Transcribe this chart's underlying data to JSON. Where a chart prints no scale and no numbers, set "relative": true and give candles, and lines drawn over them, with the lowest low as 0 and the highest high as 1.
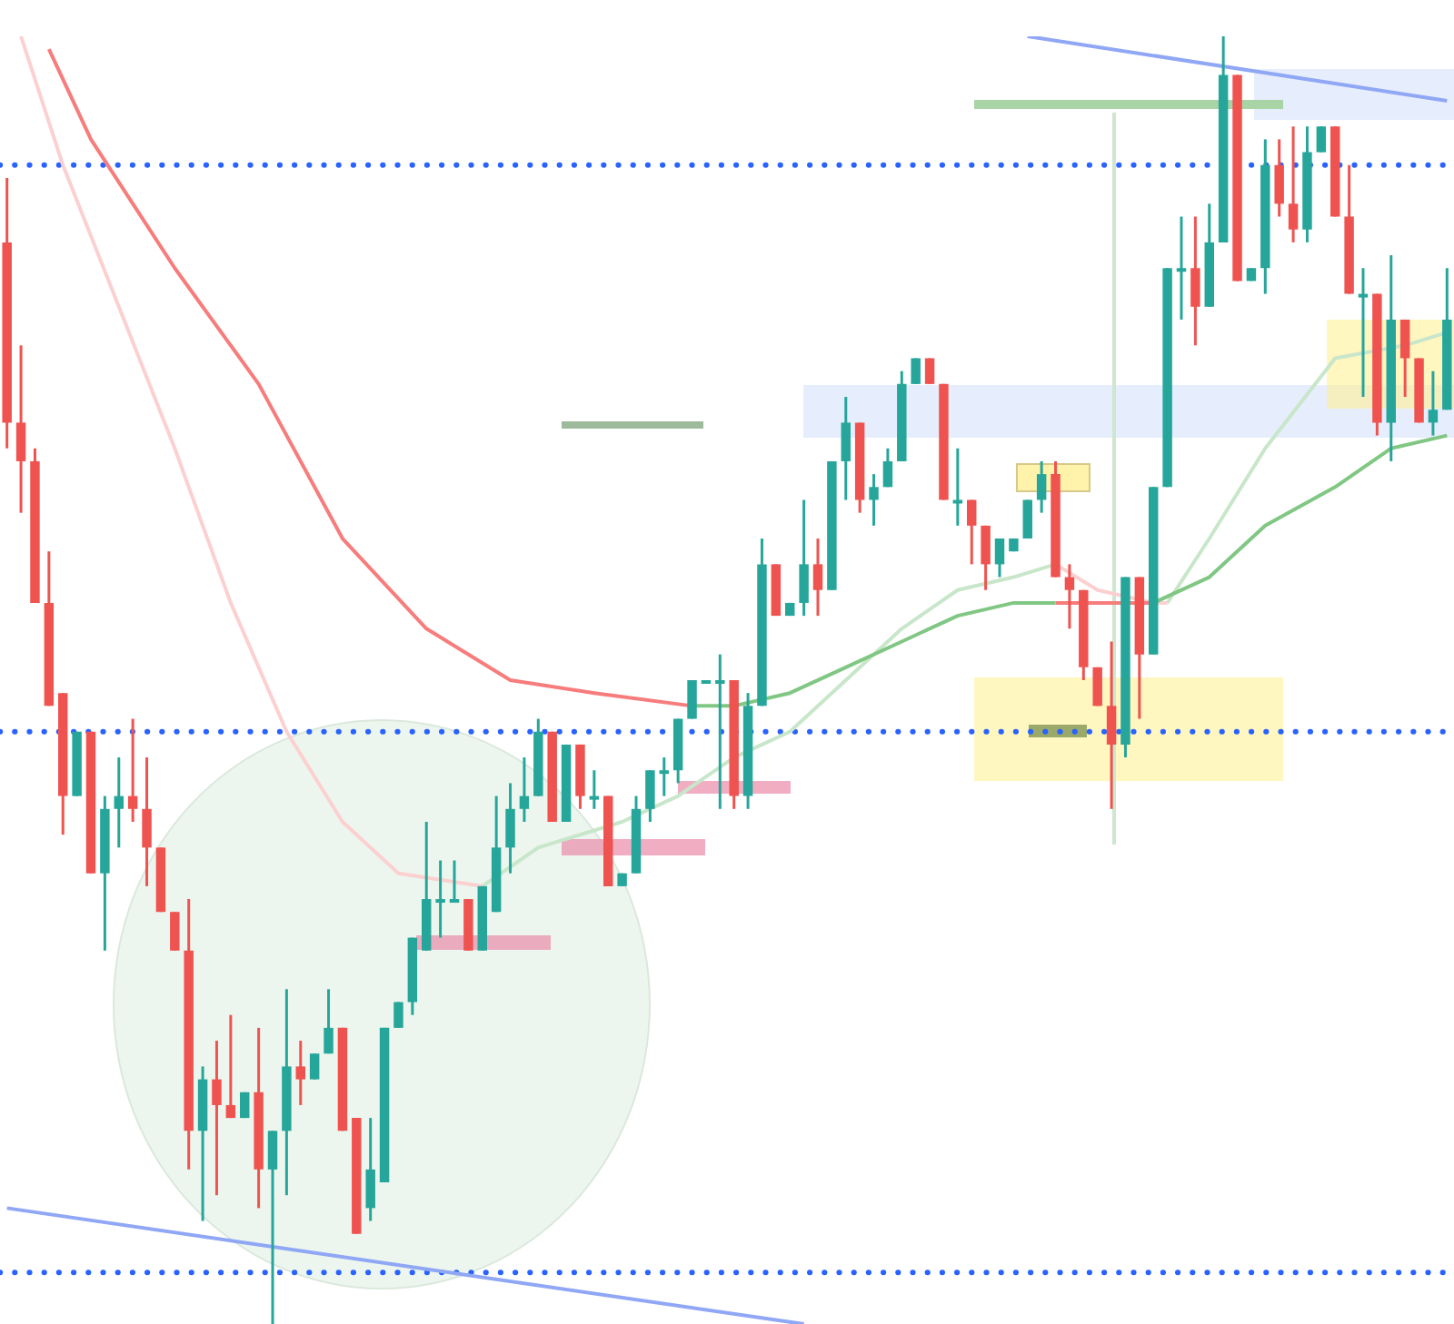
{
  "chart_data": {
    "type": "candlestick",
    "relative": true,
    "tick_labels": false,
    "categories": [
      null,
      null,
      null,
      null,
      null,
      null,
      null,
      null,
      null,
      null,
      null,
      null,
      null,
      null,
      null,
      null,
      null,
      null,
      null,
      null,
      null,
      null,
      null,
      null,
      null,
      null,
      null,
      null,
      null,
      null,
      null,
      null,
      null,
      null,
      null,
      null,
      null,
      null,
      null,
      null,
      null,
      null,
      null,
      null,
      null,
      null,
      null,
      null,
      null,
      null,
      null,
      null,
      null,
      null,
      null,
      null,
      null,
      null,
      null,
      null,
      null,
      null,
      null,
      null,
      null,
      null,
      null,
      null,
      null,
      null,
      null,
      null,
      null,
      null,
      null,
      null,
      null,
      null,
      null,
      null,
      null,
      null,
      null,
      null,
      null,
      null,
      null,
      null,
      null,
      null,
      null,
      null,
      null,
      null,
      null,
      null,
      null,
      null,
      null,
      null,
      null,
      null,
      null,
      null
    ],
    "ohlc": [
      [
        0.84,
        0.89,
        0.68,
        0.7
      ],
      [
        0.7,
        0.76,
        0.63,
        0.67
      ],
      [
        0.67,
        0.68,
        0.56,
        0.56
      ],
      [
        0.56,
        0.6,
        0.48,
        0.48
      ],
      [
        0.49,
        0.49,
        0.38,
        0.41
      ],
      [
        0.41,
        0.46,
        0.41,
        0.46
      ],
      [
        0.46,
        0.46,
        0.35,
        0.35
      ],
      [
        0.35,
        0.41,
        0.29,
        0.4
      ],
      [
        0.4,
        0.44,
        0.37,
        0.41
      ],
      [
        0.41,
        0.47,
        0.39,
        0.4
      ],
      [
        0.4,
        0.44,
        0.34,
        0.37
      ],
      [
        0.37,
        0.37,
        0.32,
        0.32
      ],
      [
        0.32,
        0.32,
        0.29,
        0.29
      ],
      [
        0.29,
        0.33,
        0.12,
        0.15
      ],
      [
        0.15,
        0.2,
        0.08,
        0.19
      ],
      [
        0.19,
        0.22,
        0.1,
        0.17
      ],
      [
        0.17,
        0.24,
        0.16,
        0.16
      ],
      [
        0.16,
        0.18,
        0.16,
        0.18
      ],
      [
        0.18,
        0.23,
        0.09,
        0.12
      ],
      [
        0.12,
        0.15,
        0,
        0.15
      ],
      [
        0.15,
        0.26,
        0.1,
        0.2
      ],
      [
        0.2,
        0.22,
        0.17,
        0.19
      ],
      [
        0.19,
        0.21,
        0.19,
        0.21
      ],
      [
        0.21,
        0.26,
        0.21,
        0.23
      ],
      [
        0.23,
        0.23,
        0.15,
        0.15
      ],
      [
        0.16,
        0.16,
        0.07,
        0.07
      ],
      [
        0.09,
        0.16,
        0.08,
        0.12
      ],
      [
        0.11,
        0.23,
        0.11,
        0.23
      ],
      [
        0.23,
        0.25,
        0.23,
        0.25
      ],
      [
        0.25,
        0.3,
        0.24,
        0.3
      ],
      [
        0.29,
        0.39,
        0.29,
        0.33
      ],
      [
        0.33,
        0.36,
        0.3,
        0.33
      ],
      [
        0.33,
        0.36,
        0.33,
        0.33
      ],
      [
        0.33,
        0.33,
        0.29,
        0.29
      ],
      [
        0.29,
        0.34,
        0.29,
        0.34
      ],
      [
        0.32,
        0.41,
        0.32,
        0.37
      ],
      [
        0.37,
        0.42,
        0.35,
        0.4
      ],
      [
        0.4,
        0.44,
        0.39,
        0.41
      ],
      [
        0.41,
        0.47,
        0.41,
        0.46
      ],
      [
        0.46,
        0.46,
        0.39,
        0.39
      ],
      [
        0.39,
        0.45,
        0.39,
        0.45
      ],
      [
        0.45,
        0.45,
        0.4,
        0.41
      ],
      [
        0.41,
        0.43,
        0.4,
        0.41
      ],
      [
        0.41,
        0.41,
        0.34,
        0.34
      ],
      [
        0.34,
        0.35,
        0.34,
        0.35
      ],
      [
        0.35,
        0.41,
        0.35,
        0.4
      ],
      [
        0.4,
        0.43,
        0.39,
        0.43
      ],
      [
        0.43,
        0.44,
        0.41,
        0.43
      ],
      [
        0.43,
        0.47,
        0.42,
        0.47
      ],
      [
        0.47,
        0.5,
        0.47,
        0.5
      ],
      [
        0.5,
        0.5,
        0.5,
        0.5
      ],
      [
        0.5,
        0.52,
        0.4,
        0.5
      ],
      [
        0.5,
        0.5,
        0.4,
        0.41
      ],
      [
        0.41,
        0.49,
        0.4,
        0.48
      ],
      [
        0.48,
        0.61,
        0.48,
        0.59
      ],
      [
        0.59,
        0.59,
        0.55,
        0.55
      ],
      [
        0.55,
        0.56,
        0.55,
        0.56
      ],
      [
        0.56,
        0.64,
        0.55,
        0.59
      ],
      [
        0.59,
        0.61,
        0.55,
        0.57
      ],
      [
        0.57,
        0.67,
        0.57,
        0.67
      ],
      [
        0.67,
        0.72,
        0.64,
        0.7
      ],
      [
        0.7,
        0.7,
        0.63,
        0.64
      ],
      [
        0.64,
        0.66,
        0.62,
        0.65
      ],
      [
        0.65,
        0.68,
        0.65,
        0.67
      ],
      [
        0.67,
        0.74,
        0.67,
        0.73
      ],
      [
        0.73,
        0.75,
        0.73,
        0.75
      ],
      [
        0.75,
        0.75,
        0.73,
        0.73
      ],
      [
        0.73,
        0.73,
        0.64,
        0.64
      ],
      [
        0.64,
        0.68,
        0.62,
        0.64
      ],
      [
        0.64,
        0.64,
        0.59,
        0.62
      ],
      [
        0.62,
        0.62,
        0.57,
        0.59
      ],
      [
        0.59,
        0.61,
        0.58,
        0.61
      ],
      [
        0.6,
        0.61,
        0.6,
        0.61
      ],
      [
        0.61,
        0.64,
        0.61,
        0.64
      ],
      [
        0.64,
        0.67,
        0.63,
        0.66
      ],
      [
        0.66,
        0.67,
        0.58,
        0.58
      ],
      [
        0.58,
        0.59,
        0.54,
        0.57
      ],
      [
        0.57,
        0.57,
        0.5,
        0.51
      ],
      [
        0.51,
        0.51,
        0.48,
        0.48
      ],
      [
        0.48,
        0.53,
        0.4,
        0.45
      ],
      [
        0.45,
        0.58,
        0.44,
        0.58
      ],
      [
        0.58,
        0.58,
        0.47,
        0.52
      ],
      [
        0.52,
        0.65,
        0.52,
        0.65
      ],
      [
        0.65,
        0.82,
        0.65,
        0.82
      ],
      [
        0.82,
        0.86,
        0.78,
        0.82
      ],
      [
        0.82,
        0.86,
        0.76,
        0.79
      ],
      [
        0.79,
        0.87,
        0.79,
        0.84
      ],
      [
        0.84,
        1.0,
        0.84,
        0.97
      ],
      [
        0.97,
        0.97,
        0.81,
        0.81
      ],
      [
        0.81,
        0.82,
        0.81,
        0.82
      ],
      [
        0.82,
        0.92,
        0.8,
        0.9
      ],
      [
        0.9,
        0.92,
        0.86,
        0.87
      ],
      [
        0.87,
        0.93,
        0.84,
        0.85
      ],
      [
        0.85,
        0.93,
        0.84,
        0.91
      ],
      [
        0.91,
        0.93,
        0.91,
        0.93
      ],
      [
        0.93,
        0.93,
        0.86,
        0.86
      ],
      [
        0.86,
        0.9,
        0.8,
        0.8
      ],
      [
        0.8,
        0.82,
        0.72,
        0.8
      ],
      [
        0.8,
        0.8,
        0.69,
        0.7
      ],
      [
        0.7,
        0.83,
        0.67,
        0.78
      ],
      [
        0.78,
        0.78,
        0.72,
        0.75
      ],
      [
        0.75,
        0.75,
        0.7,
        0.7
      ],
      [
        0.7,
        0.74,
        0.69,
        0.71
      ],
      [
        0.71,
        0.82,
        0.71,
        0.78
      ]
    ],
    "series": [
      {
        "type": "line",
        "color": "#f77c7c",
        "values": [
          null,
          null,
          null,
          0.99,
          null,
          null,
          0.92,
          null,
          null,
          null,
          null,
          null,
          0.82,
          null,
          null,
          null,
          null,
          null,
          0.73,
          null,
          null,
          null,
          null,
          null,
          0.61,
          null,
          null,
          null,
          null,
          null,
          0.54,
          null,
          null,
          null,
          null,
          null,
          0.5,
          null,
          null,
          null,
          null,
          null,
          0.49,
          null,
          null,
          null,
          null,
          null,
          null,
          0.48,
          null,
          null,
          null,
          null,
          null,
          null,
          null,
          null,
          null,
          null,
          null,
          null,
          null,
          null,
          null,
          null,
          null,
          null,
          null,
          null,
          null,
          null,
          null,
          null,
          null,
          null,
          null,
          null,
          null,
          null,
          null,
          null,
          null,
          null,
          null,
          null,
          null,
          null,
          null,
          null,
          null,
          null,
          null,
          null,
          null,
          null,
          null,
          null,
          null,
          null,
          null,
          null,
          null,
          null
        ]
      },
      {
        "type": "line",
        "color": "#81c784",
        "values": [
          null,
          null,
          null,
          null,
          null,
          null,
          null,
          null,
          null,
          null,
          null,
          null,
          null,
          null,
          null,
          null,
          null,
          null,
          null,
          null,
          null,
          null,
          null,
          null,
          null,
          null,
          null,
          null,
          null,
          null,
          null,
          null,
          null,
          null,
          null,
          null,
          null,
          null,
          null,
          null,
          null,
          null,
          null,
          null,
          null,
          null,
          null,
          null,
          null,
          0.48,
          null,
          null,
          0.48,
          null,
          null,
          null,
          0.49,
          null,
          null,
          null,
          0.51,
          null,
          null,
          null,
          0.53,
          null,
          null,
          null,
          0.55,
          null,
          null,
          null,
          0.56,
          null,
          null,
          0.56,
          null,
          null,
          null,
          null,
          null,
          null,
          null,
          null,
          null,
          null,
          null,
          null,
          null,
          null,
          null,
          null,
          null,
          null,
          null,
          null,
          null,
          null,
          null,
          null,
          null,
          null,
          null,
          null
        ]
      },
      {
        "type": "line",
        "color": "#f77c7c",
        "values": [
          null,
          null,
          null,
          null,
          null,
          null,
          null,
          null,
          null,
          null,
          null,
          null,
          null,
          null,
          null,
          null,
          null,
          null,
          null,
          null,
          null,
          null,
          null,
          null,
          null,
          null,
          null,
          null,
          null,
          null,
          null,
          null,
          null,
          null,
          null,
          null,
          null,
          null,
          null,
          null,
          null,
          null,
          null,
          null,
          null,
          null,
          null,
          null,
          null,
          null,
          null,
          null,
          null,
          null,
          null,
          null,
          null,
          null,
          null,
          null,
          null,
          null,
          null,
          null,
          null,
          null,
          null,
          null,
          null,
          null,
          null,
          null,
          null,
          null,
          null,
          0.56,
          null,
          null,
          0.56,
          null,
          null,
          null,
          0.56,
          null,
          null,
          null,
          null,
          null,
          null,
          null,
          null,
          null,
          null,
          null,
          null,
          null,
          null,
          null,
          null,
          null,
          null,
          null,
          null,
          null
        ]
      },
      {
        "type": "line",
        "color": "#81c784",
        "values": [
          null,
          null,
          null,
          null,
          null,
          null,
          null,
          null,
          null,
          null,
          null,
          null,
          null,
          null,
          null,
          null,
          null,
          null,
          null,
          null,
          null,
          null,
          null,
          null,
          null,
          null,
          null,
          null,
          null,
          null,
          null,
          null,
          null,
          null,
          null,
          null,
          null,
          null,
          null,
          null,
          null,
          null,
          null,
          null,
          null,
          null,
          null,
          null,
          null,
          null,
          null,
          null,
          null,
          null,
          null,
          null,
          null,
          null,
          null,
          null,
          null,
          null,
          null,
          null,
          null,
          null,
          null,
          null,
          null,
          null,
          null,
          null,
          null,
          null,
          null,
          null,
          null,
          null,
          null,
          null,
          null,
          null,
          0.56,
          null,
          null,
          null,
          0.58,
          null,
          null,
          null,
          0.62,
          null,
          null,
          null,
          null,
          0.65,
          null,
          null,
          null,
          0.68,
          null,
          null,
          null,
          0.69
        ]
      },
      {
        "type": "line",
        "color": "#fcd0d0",
        "values": [
          null,
          1.0,
          null,
          null,
          0.9,
          null,
          null,
          null,
          0.79,
          null,
          null,
          null,
          0.68,
          null,
          null,
          null,
          0.56,
          null,
          null,
          null,
          0.46,
          null,
          null,
          null,
          0.39,
          null,
          null,
          null,
          0.35,
          null,
          null,
          null,
          null,
          null,
          0.34,
          null,
          null,
          null,
          null,
          null,
          null,
          null,
          null,
          null,
          null,
          null,
          null,
          null,
          null,
          null,
          null,
          null,
          null,
          null,
          null,
          null,
          null,
          null,
          null,
          null,
          null,
          null,
          null,
          null,
          null,
          null,
          null,
          null,
          null,
          null,
          null,
          null,
          null,
          null,
          null,
          null,
          null,
          null,
          null,
          null,
          null,
          null,
          null,
          null,
          null,
          null,
          null,
          null,
          null,
          null,
          null,
          null,
          null,
          null,
          null,
          null,
          null,
          null,
          null,
          null,
          null,
          null,
          null,
          null
        ]
      },
      {
        "type": "line",
        "color": "#c8e6c9",
        "values": [
          null,
          null,
          null,
          null,
          null,
          null,
          null,
          null,
          null,
          null,
          null,
          null,
          null,
          null,
          null,
          null,
          null,
          null,
          null,
          null,
          null,
          null,
          null,
          null,
          null,
          null,
          null,
          null,
          null,
          null,
          null,
          null,
          null,
          null,
          0.34,
          null,
          null,
          null,
          0.37,
          null,
          null,
          null,
          null,
          null,
          0.39,
          null,
          null,
          null,
          0.41,
          null,
          null,
          null,
          0.44,
          null,
          null,
          null,
          0.46,
          null,
          null,
          null,
          0.5,
          null,
          null,
          null,
          0.54,
          null,
          null,
          null,
          0.57,
          null,
          null,
          null,
          0.58,
          null,
          null,
          0.59,
          null,
          null,
          null,
          null,
          null,
          null,
          null,
          null,
          null,
          null,
          null,
          null,
          null,
          null,
          null,
          null,
          null,
          null,
          null,
          null,
          null,
          null,
          null,
          null,
          null,
          null,
          null,
          null
        ]
      },
      {
        "type": "line",
        "color": "#fcd0d0",
        "values": [
          null,
          null,
          null,
          null,
          null,
          null,
          null,
          null,
          null,
          null,
          null,
          null,
          null,
          null,
          null,
          null,
          null,
          null,
          null,
          null,
          null,
          null,
          null,
          null,
          null,
          null,
          null,
          null,
          null,
          null,
          null,
          null,
          null,
          null,
          null,
          null,
          null,
          null,
          null,
          null,
          null,
          null,
          null,
          null,
          null,
          null,
          null,
          null,
          null,
          null,
          null,
          null,
          null,
          null,
          null,
          null,
          null,
          null,
          null,
          null,
          null,
          null,
          null,
          null,
          null,
          null,
          null,
          null,
          null,
          null,
          null,
          null,
          null,
          null,
          null,
          0.59,
          null,
          null,
          0.57,
          null,
          null,
          null,
          0.56,
          0.56,
          null,
          null,
          null,
          null,
          null,
          null,
          null,
          null,
          null,
          null,
          null,
          null,
          null,
          null,
          null,
          null,
          null,
          null,
          null,
          null
        ]
      },
      {
        "type": "line",
        "color": "#c8e6c9",
        "values": [
          null,
          null,
          null,
          null,
          null,
          null,
          null,
          null,
          null,
          null,
          null,
          null,
          null,
          null,
          null,
          null,
          null,
          null,
          null,
          null,
          null,
          null,
          null,
          null,
          null,
          null,
          null,
          null,
          null,
          null,
          null,
          null,
          null,
          null,
          null,
          null,
          null,
          null,
          null,
          null,
          null,
          null,
          null,
          null,
          null,
          null,
          null,
          null,
          null,
          null,
          null,
          null,
          null,
          null,
          null,
          null,
          null,
          null,
          null,
          null,
          null,
          null,
          null,
          null,
          null,
          null,
          null,
          null,
          null,
          null,
          null,
          null,
          null,
          null,
          null,
          null,
          null,
          null,
          null,
          null,
          null,
          null,
          null,
          0.56,
          null,
          null,
          0.61,
          null,
          null,
          null,
          0.68,
          null,
          null,
          null,
          null,
          0.75,
          null,
          null,
          null,
          null,
          0.76,
          null,
          null,
          0.77
        ]
      },
      {
        "type": "line",
        "color": "#8fa7f5",
        "values": [
          null,
          null,
          null,
          null,
          null,
          null,
          null,
          null,
          null,
          null,
          null,
          null,
          null,
          null,
          null,
          null,
          null,
          null,
          null,
          null,
          null,
          null,
          null,
          null,
          null,
          null,
          null,
          null,
          null,
          null,
          null,
          null,
          null,
          null,
          null,
          null,
          null,
          null,
          null,
          null,
          null,
          null,
          null,
          null,
          null,
          null,
          null,
          null,
          null,
          null,
          null,
          null,
          null,
          null,
          null,
          null,
          null,
          null,
          null,
          null,
          null,
          null,
          null,
          null,
          null,
          null,
          null,
          null,
          null,
          null,
          null,
          null,
          null,
          1.0,
          null,
          null,
          null,
          null,
          null,
          null,
          null,
          null,
          null,
          null,
          null,
          null,
          null,
          null,
          null,
          null,
          null,
          null,
          null,
          null,
          null,
          null,
          null,
          null,
          null,
          null,
          null,
          null,
          null,
          0.95
        ]
      },
      {
        "type": "line",
        "color": "#8fa7f5",
        "values": [
          0.09,
          null,
          null,
          null,
          null,
          null,
          null,
          null,
          null,
          null,
          null,
          null,
          null,
          null,
          null,
          null,
          null,
          null,
          null,
          null,
          null,
          null,
          null,
          null,
          null,
          null,
          null,
          null,
          null,
          null,
          null,
          null,
          null,
          null,
          null,
          null,
          null,
          null,
          null,
          null,
          null,
          null,
          null,
          null,
          null,
          null,
          null,
          null,
          null,
          null,
          null,
          null,
          null,
          null,
          null,
          null,
          null,
          0,
          null,
          null,
          null,
          null,
          null,
          null,
          null,
          null,
          null,
          null,
          null,
          null,
          null,
          null,
          null,
          null,
          null,
          null,
          null,
          null,
          null,
          null,
          null,
          null,
          null,
          null,
          null,
          null,
          null,
          null,
          null,
          null,
          null,
          null,
          null,
          null,
          null,
          null,
          null,
          null,
          null,
          null,
          null,
          null,
          null,
          null
        ]
      }
    ],
    "ref_lines": [
      {
        "axis": "y",
        "value": 0.9,
        "color": "#2962ff",
        "line_style": "dotted"
      },
      {
        "axis": "y",
        "value": 0.46,
        "color": "#2962ff",
        "line_style": "dotted"
      },
      {
        "axis": "y",
        "value": 0.04,
        "color": "#2962ff",
        "line_style": "dotted"
      }
    ]
  }
}
